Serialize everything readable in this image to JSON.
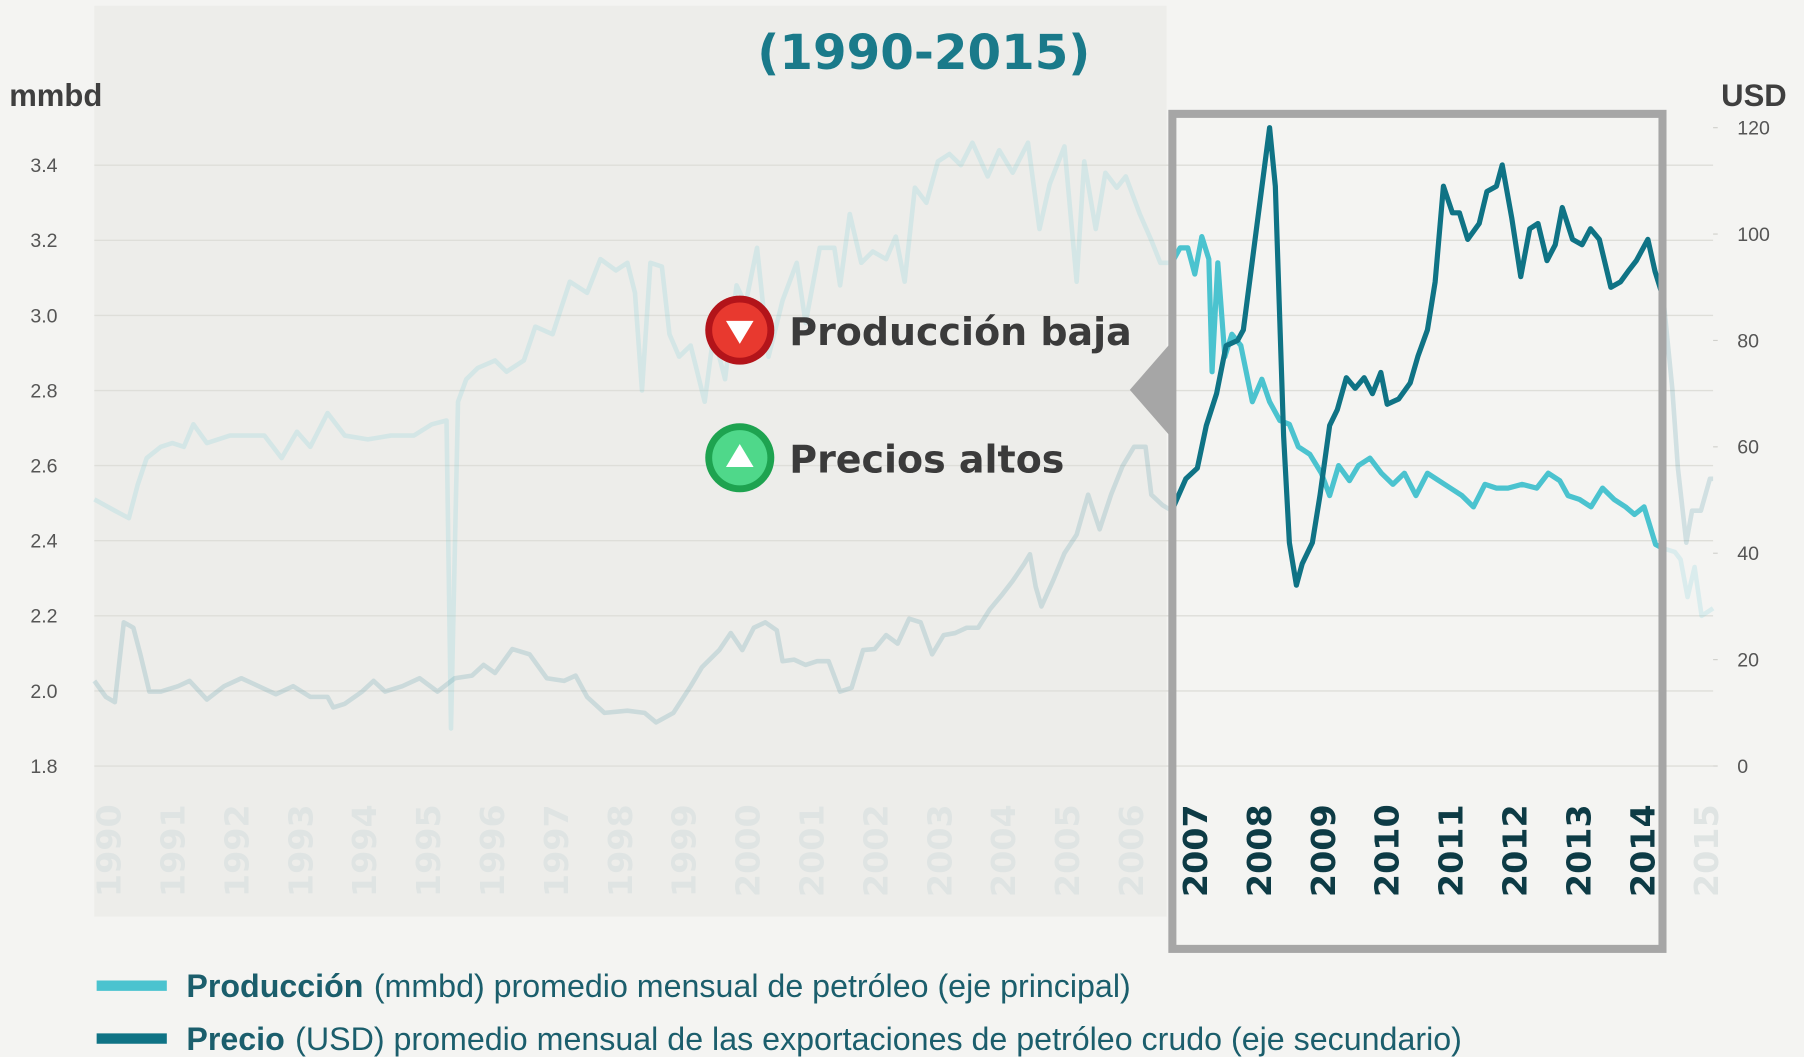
{
  "chart_data": {
    "type": "line",
    "title": "(1990-2015)",
    "ylabel": "mmbd",
    "y2label": "USD",
    "annotations": [
      "Producción baja",
      "Precios altos"
    ],
    "xlim": [
      1989.77,
      2015.1
    ],
    "xticks": [
      1990,
      1991,
      1992,
      1993,
      1994,
      1995,
      1996,
      1997,
      1998,
      1999,
      2000,
      2001,
      2002,
      2003,
      2004,
      2005,
      2006,
      2007,
      2008,
      2009,
      2010,
      2011,
      2012,
      2013,
      2014,
      2015
    ],
    "ylim": [
      1.8,
      3.5
    ],
    "yticks": [
      1.8,
      {
        "value": 2,
        "label": "2.0"
      },
      2.2,
      2.4,
      2.6,
      2.8,
      {
        "value": 3,
        "label": "3.0"
      },
      3.2,
      3.4
    ],
    "y2lim": [
      0,
      120
    ],
    "y2ticks": [
      0,
      20,
      40,
      60,
      80,
      100,
      120
    ],
    "grid": true,
    "series": [
      {
        "name": "Producción",
        "description": "(mmbd) promedio mensual de petróleo (eje principal)",
        "color": "#4bc3cf",
        "axis": "y",
        "x": [
          1989.77,
          1990.09,
          1990.31,
          1990.45,
          1990.59,
          1990.81,
          1990.99,
          1991.17,
          1991.32,
          1991.53,
          1991.89,
          1992.43,
          1992.7,
          1992.94,
          1993.15,
          1993.42,
          1993.69,
          1994.05,
          1994.41,
          1994.77,
          1995.05,
          1995.28,
          1995.35,
          1995.46,
          1995.59,
          1995.77,
          1996.04,
          1996.22,
          1996.49,
          1996.67,
          1996.94,
          1997.21,
          1997.48,
          1997.69,
          1997.93,
          1998.11,
          1998.23,
          1998.34,
          1998.47,
          1998.65,
          1998.77,
          1998.92,
          1999.1,
          1999.32,
          1999.46,
          1999.64,
          1999.82,
          1999.96,
          2000.14,
          2000.32,
          2000.54,
          2000.76,
          2000.9,
          2001.12,
          2001.35,
          2001.44,
          2001.59,
          2001.77,
          2001.95,
          2002.16,
          2002.31,
          2002.45,
          2002.61,
          2002.79,
          2002.97,
          2003.15,
          2003.33,
          2003.51,
          2003.75,
          2003.93,
          2004.14,
          2004.38,
          2004.56,
          2004.72,
          2004.95,
          2005.14,
          2005.26,
          2005.44,
          2005.59,
          2005.77,
          2005.91,
          2006.13,
          2006.31,
          2006.45,
          2006.63,
          2006.76,
          2006.88,
          2006.99,
          2007.1,
          2007.21,
          2007.26,
          2007.35,
          2007.46,
          2007.57,
          2007.71,
          2007.89,
          2008.04,
          2008.16,
          2008.32,
          2008.47,
          2008.61,
          2008.79,
          2008.97,
          2009.1,
          2009.24,
          2009.41,
          2009.55,
          2009.73,
          2009.91,
          2010.09,
          2010.27,
          2010.45,
          2010.63,
          2010.81,
          2010.99,
          2011.17,
          2011.35,
          2011.53,
          2011.71,
          2011.89,
          2012.11,
          2012.34,
          2012.52,
          2012.7,
          2012.83,
          2013.01,
          2013.19,
          2013.37,
          2013.55,
          2013.73,
          2013.87,
          2014.02,
          2014.2,
          2014.31,
          2014.5,
          2014.59,
          2014.7,
          2014.81,
          2014.92,
          2015.1
        ],
        "values": [
          2.51,
          2.48,
          2.46,
          2.55,
          2.62,
          2.65,
          2.66,
          2.65,
          2.71,
          2.66,
          2.68,
          2.68,
          2.62,
          2.69,
          2.65,
          2.74,
          2.68,
          2.67,
          2.68,
          2.68,
          2.71,
          2.72,
          1.9,
          2.77,
          2.83,
          2.86,
          2.88,
          2.85,
          2.88,
          2.97,
          2.95,
          3.09,
          3.06,
          3.15,
          3.12,
          3.14,
          3.06,
          2.8,
          3.14,
          3.13,
          2.95,
          2.89,
          2.92,
          2.77,
          2.95,
          2.83,
          3.08,
          3.03,
          3.18,
          2.89,
          3.04,
          3.14,
          2.98,
          3.18,
          3.18,
          3.08,
          3.27,
          3.14,
          3.17,
          3.15,
          3.21,
          3.09,
          3.34,
          3.3,
          3.41,
          3.43,
          3.4,
          3.46,
          3.37,
          3.44,
          3.38,
          3.46,
          3.23,
          3.35,
          3.45,
          3.09,
          3.41,
          3.23,
          3.38,
          3.34,
          3.37,
          3.27,
          3.2,
          3.14,
          3.14,
          3.18,
          3.18,
          3.11,
          3.21,
          3.15,
          2.85,
          3.14,
          2.89,
          2.95,
          2.92,
          2.77,
          2.83,
          2.77,
          2.72,
          2.71,
          2.65,
          2.63,
          2.58,
          2.52,
          2.6,
          2.56,
          2.6,
          2.62,
          2.58,
          2.55,
          2.58,
          2.52,
          2.58,
          2.56,
          2.54,
          2.52,
          2.49,
          2.55,
          2.54,
          2.54,
          2.55,
          2.54,
          2.58,
          2.56,
          2.52,
          2.51,
          2.49,
          2.54,
          2.51,
          2.49,
          2.47,
          2.49,
          2.39,
          2.38,
          2.37,
          2.35,
          2.25,
          2.33,
          2.2,
          2.22
        ]
      },
      {
        "name": "Precio",
        "description": "(USD) promedio mensual de las exportaciones de petróleo crudo (eje secundario)",
        "color": "#0f7385",
        "axis": "y2",
        "x": [
          1989.77,
          1989.95,
          1990.09,
          1990.23,
          1990.38,
          1990.49,
          1990.63,
          1990.81,
          1991.08,
          1991.26,
          1991.53,
          1991.8,
          1992.07,
          1992.34,
          1992.61,
          1992.88,
          1993.15,
          1993.42,
          1993.51,
          1993.69,
          1993.96,
          1994.14,
          1994.32,
          1994.59,
          1994.86,
          1995.14,
          1995.41,
          1995.68,
          1995.86,
          1996.04,
          1996.31,
          1996.58,
          1996.85,
          1997.12,
          1997.3,
          1997.48,
          1997.75,
          1998.11,
          1998.38,
          1998.56,
          1998.83,
          1999.1,
          1999.28,
          1999.55,
          1999.73,
          1999.91,
          2000.09,
          2000.27,
          2000.45,
          2000.54,
          2000.72,
          2000.9,
          2001.08,
          2001.26,
          2001.44,
          2001.62,
          2001.8,
          2001.98,
          2002.16,
          2002.34,
          2002.52,
          2002.7,
          2002.88,
          2003.06,
          2003.24,
          2003.42,
          2003.6,
          2003.78,
          2003.96,
          2004.14,
          2004.32,
          2004.41,
          2004.5,
          2004.59,
          2004.77,
          2004.95,
          2005.14,
          2005.32,
          2005.5,
          2005.68,
          2005.86,
          2006.04,
          2006.22,
          2006.31,
          2006.49,
          2006.63,
          2006.85,
          2007.03,
          2007.17,
          2007.33,
          2007.48,
          2007.66,
          2007.75,
          2007.89,
          2008.02,
          2008.16,
          2008.25,
          2008.38,
          2008.47,
          2008.58,
          2008.67,
          2008.83,
          2008.95,
          2009.1,
          2009.22,
          2009.36,
          2009.5,
          2009.64,
          2009.77,
          2009.9,
          2010.0,
          2010.18,
          2010.36,
          2010.48,
          2010.63,
          2010.75,
          2010.88,
          2011.02,
          2011.13,
          2011.26,
          2011.44,
          2011.56,
          2011.71,
          2011.8,
          2011.95,
          2012.09,
          2012.23,
          2012.36,
          2012.5,
          2012.63,
          2012.74,
          2012.9,
          2013.05,
          2013.18,
          2013.32,
          2013.5,
          2013.65,
          2013.77,
          2013.9,
          2014.08,
          2014.19,
          2014.32,
          2014.46,
          2014.55,
          2014.68,
          2014.77,
          2014.91,
          2015.05,
          2015.1
        ],
        "values": [
          16,
          13,
          12,
          27,
          26,
          21,
          14,
          14,
          15,
          16,
          12.5,
          15,
          16.5,
          15,
          13.5,
          15,
          13,
          13,
          11,
          11.7,
          14,
          16,
          14,
          15,
          16.5,
          14,
          16.5,
          17,
          19,
          17.5,
          22,
          21,
          16.5,
          16,
          17,
          13,
          10,
          10.4,
          10,
          8.2,
          10,
          15,
          18.6,
          21.8,
          25,
          21.8,
          26,
          27,
          25.5,
          19.7,
          20,
          19,
          19.7,
          19.7,
          14,
          14.7,
          21.8,
          22,
          24.6,
          23,
          27.7,
          27,
          21,
          24.6,
          25,
          26,
          26,
          29.4,
          32,
          34.8,
          38,
          39.8,
          33.7,
          30,
          34.8,
          40,
          43.5,
          51,
          44.5,
          51,
          56.4,
          60,
          60,
          51,
          49,
          48,
          54,
          56,
          64,
          70,
          79,
          80,
          82,
          95,
          107,
          120,
          109,
          62,
          42,
          34,
          38,
          42,
          51,
          64,
          67,
          73,
          71,
          73,
          70,
          74,
          68,
          69,
          72,
          77,
          82,
          91,
          109,
          104,
          104,
          99,
          102,
          108,
          109,
          113,
          103,
          92,
          101,
          102,
          95,
          98,
          105,
          99,
          98,
          101,
          99,
          90,
          91,
          93,
          95,
          99,
          93,
          88,
          71,
          56,
          42,
          48,
          48,
          54,
          54
        ]
      }
    ]
  }
}
